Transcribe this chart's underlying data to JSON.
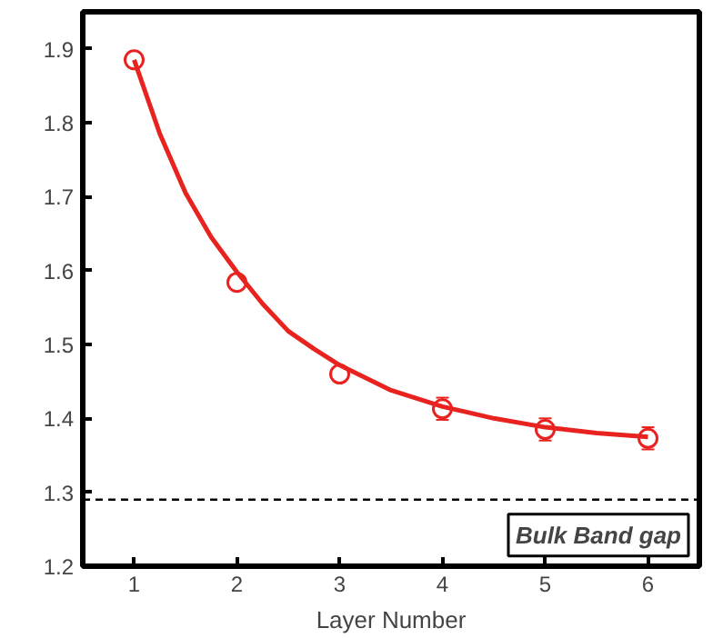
{
  "chart_data": {
    "type": "scatter",
    "xlabel": "Layer Number",
    "x": [
      1,
      2,
      3,
      4,
      5,
      6
    ],
    "series": [
      {
        "color": "#e8231f",
        "marker": "circle",
        "values": [
          1.885,
          1.584,
          1.46,
          1.413,
          1.385,
          1.373
        ],
        "errors": [
          0.005,
          0.008,
          0.008,
          0.015,
          0.015,
          0.015
        ]
      },
      {
        "type": "line",
        "color": "#e8231f",
        "line_style": "solid",
        "x": [
          1,
          1.25,
          1.5,
          1.75,
          2,
          2.25,
          2.5,
          2.75,
          3,
          3.5,
          4,
          4.5,
          5,
          5.5,
          6
        ],
        "values": [
          1.885,
          1.785,
          1.705,
          1.645,
          1.598,
          1.555,
          1.518,
          1.494,
          1.472,
          1.438,
          1.416,
          1.4,
          1.388,
          1.38,
          1.375
        ]
      }
    ],
    "xlim": [
      0.5,
      6.5
    ],
    "ylim": [
      1.2,
      1.95
    ],
    "xticks": [
      1,
      2,
      3,
      4,
      5,
      6
    ],
    "yticks": [
      1.2,
      1.3,
      1.4,
      1.5,
      1.6,
      1.7,
      1.8,
      1.9
    ],
    "ref_lines": [
      {
        "axis": "y",
        "value": 1.29,
        "label": "Bulk Band gap",
        "color": "#000000",
        "line_style": "dashed"
      }
    ],
    "grid": false
  }
}
